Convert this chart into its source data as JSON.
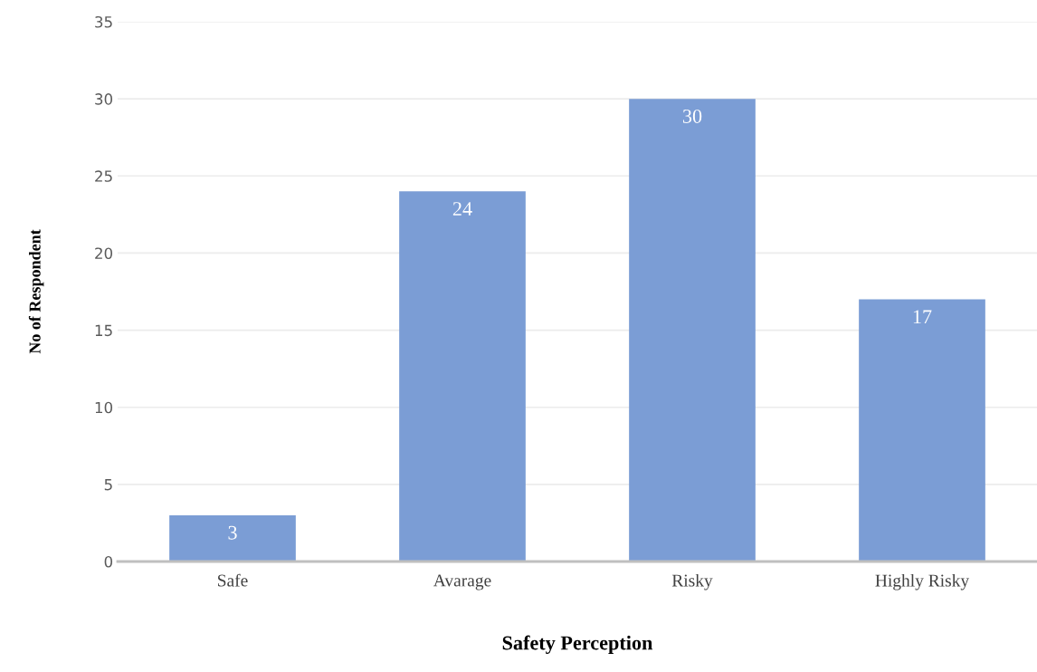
{
  "chart_data": {
    "type": "bar",
    "xlabel": "Safety Perception",
    "ylabel": "No of Respondent",
    "categories": [
      "Safe",
      "Avarage",
      "Risky",
      "Highly Risky"
    ],
    "values": [
      3,
      24,
      30,
      17
    ],
    "color": "#7b9dd5",
    "ylim": [
      0,
      35
    ],
    "yticks": [
      0,
      5,
      10,
      15,
      20,
      25,
      30,
      35
    ],
    "grid": "y",
    "data_labels": true
  }
}
